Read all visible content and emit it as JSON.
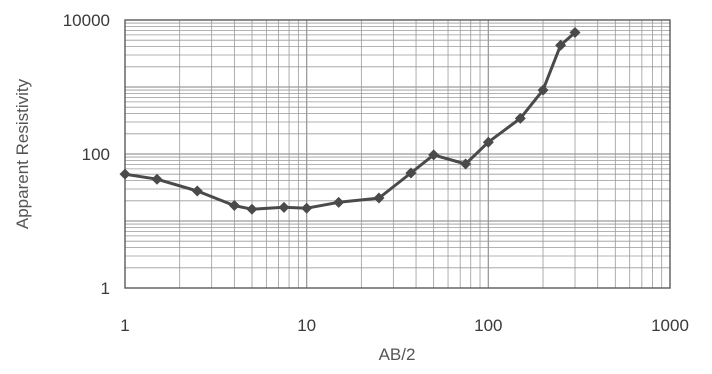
{
  "chart_data": {
    "type": "line",
    "x_scale": "log",
    "y_scale": "log",
    "xlim": [
      1,
      1000
    ],
    "ylim": [
      1,
      10000
    ],
    "xticks": [
      "1",
      "10",
      "100",
      "1000"
    ],
    "yticks": [
      "1",
      "100",
      "10000"
    ],
    "xlabel": "AB/2",
    "ylabel": "Apparent Resistivity",
    "grid": true,
    "legend": "none",
    "colors": {
      "line": "#4a4a4a",
      "marker": "#4a4a4a",
      "grid": "#9a9a9a",
      "frame": "#5a5a5a"
    },
    "series": [
      {
        "x": [
          1,
          1.5,
          2.5,
          4,
          5,
          7.5,
          10,
          15,
          25,
          37.5,
          50,
          75,
          100,
          150,
          200,
          250,
          300
        ],
        "y": [
          50,
          42,
          28,
          17,
          15,
          16,
          15.5,
          19,
          22,
          52,
          97,
          71,
          150,
          340,
          900,
          4200,
          6500
        ]
      }
    ]
  }
}
